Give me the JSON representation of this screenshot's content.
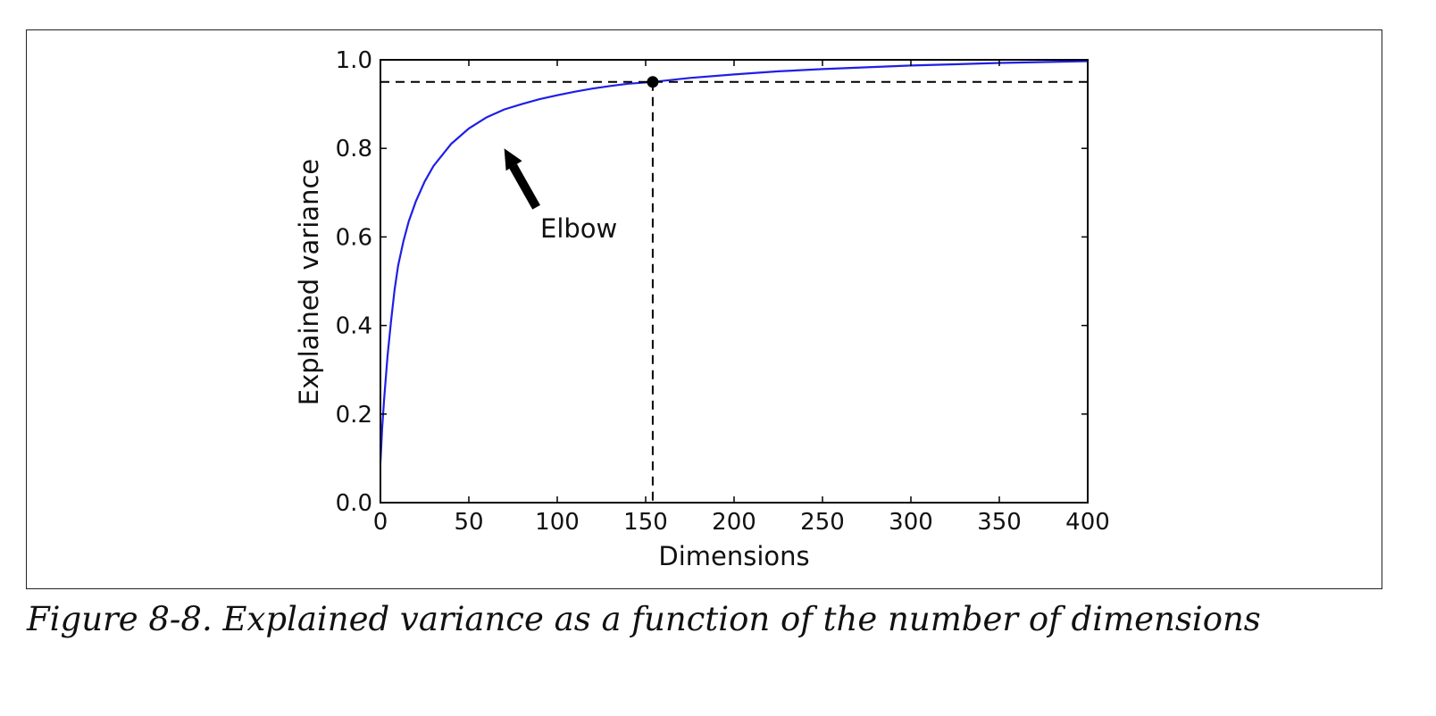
{
  "caption": "Figure 8-8. Explained variance as a function of the number of dimensions",
  "colors": {
    "curve": "#1f1fe6",
    "axes": "#000000",
    "guides": "#000000"
  },
  "chart_data": {
    "type": "line",
    "xlabel": "Dimensions",
    "ylabel": "Explained variance",
    "xlim": [
      0,
      400
    ],
    "ylim": [
      0,
      1.0
    ],
    "xticks": [
      "0",
      "50",
      "100",
      "150",
      "200",
      "250",
      "300",
      "350",
      "400"
    ],
    "xtick_values": [
      0,
      50,
      100,
      150,
      200,
      250,
      300,
      350,
      400
    ],
    "yticks": [
      "0.0",
      "0.2",
      "0.4",
      "0.6",
      "0.8",
      "1.0"
    ],
    "ytick_values": [
      0,
      0.2,
      0.4,
      0.6,
      0.8,
      1.0
    ],
    "grid": false,
    "series": [
      {
        "x": [
          0,
          1,
          2,
          4,
          6,
          8,
          10,
          13,
          16,
          20,
          25,
          30,
          35,
          40,
          50,
          60,
          70,
          80,
          90,
          100,
          110,
          120,
          130,
          140,
          154,
          175,
          200,
          225,
          250,
          275,
          300,
          325,
          350,
          375,
          400
        ],
        "y": [
          0.09,
          0.17,
          0.23,
          0.33,
          0.41,
          0.48,
          0.535,
          0.59,
          0.635,
          0.68,
          0.725,
          0.76,
          0.785,
          0.81,
          0.845,
          0.87,
          0.888,
          0.9,
          0.911,
          0.92,
          0.928,
          0.935,
          0.941,
          0.946,
          0.95,
          0.959,
          0.967,
          0.974,
          0.979,
          0.983,
          0.987,
          0.99,
          0.993,
          0.995,
          0.997
        ]
      }
    ],
    "threshold": {
      "y": 0.95,
      "x": 154
    },
    "annotation": {
      "text": "Elbow",
      "points_to": [
        70,
        0.8
      ]
    }
  }
}
